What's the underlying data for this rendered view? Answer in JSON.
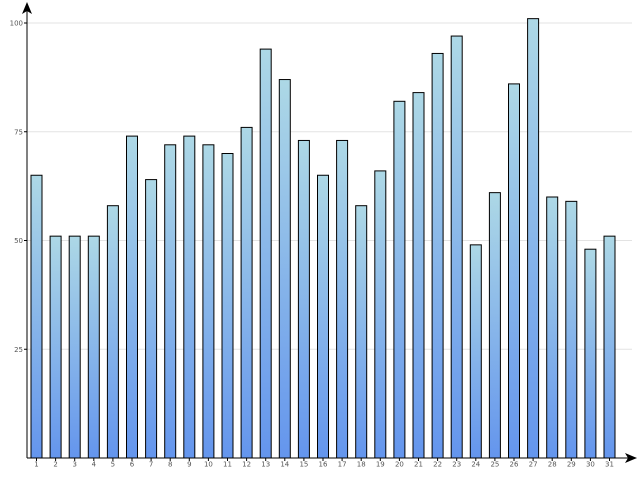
{
  "chart_data": {
    "type": "bar",
    "categories": [
      "1",
      "2",
      "3",
      "4",
      "5",
      "6",
      "7",
      "8",
      "9",
      "10",
      "11",
      "12",
      "13",
      "14",
      "15",
      "16",
      "17",
      "18",
      "19",
      "20",
      "21",
      "22",
      "23",
      "24",
      "25",
      "26",
      "27",
      "28",
      "29",
      "30",
      "31"
    ],
    "values": [
      65,
      51,
      51,
      51,
      58,
      74,
      64,
      72,
      74,
      72,
      70,
      76,
      94,
      87,
      73,
      65,
      73,
      58,
      66,
      82,
      84,
      93,
      97,
      49,
      61,
      86,
      101,
      60,
      59,
      48,
      51
    ],
    "ylim": [
      0,
      100
    ],
    "yticks": [
      25,
      50,
      75,
      100
    ],
    "ytick_labels": [
      "25",
      "50",
      "75",
      "100"
    ],
    "grid": true,
    "title": "",
    "xlabel": "",
    "ylabel": "",
    "colors": {
      "bar_top": "#add8e6",
      "bar_bottom": "#6495ed",
      "grid": "#e3e3e3",
      "axis": "#000000"
    }
  }
}
